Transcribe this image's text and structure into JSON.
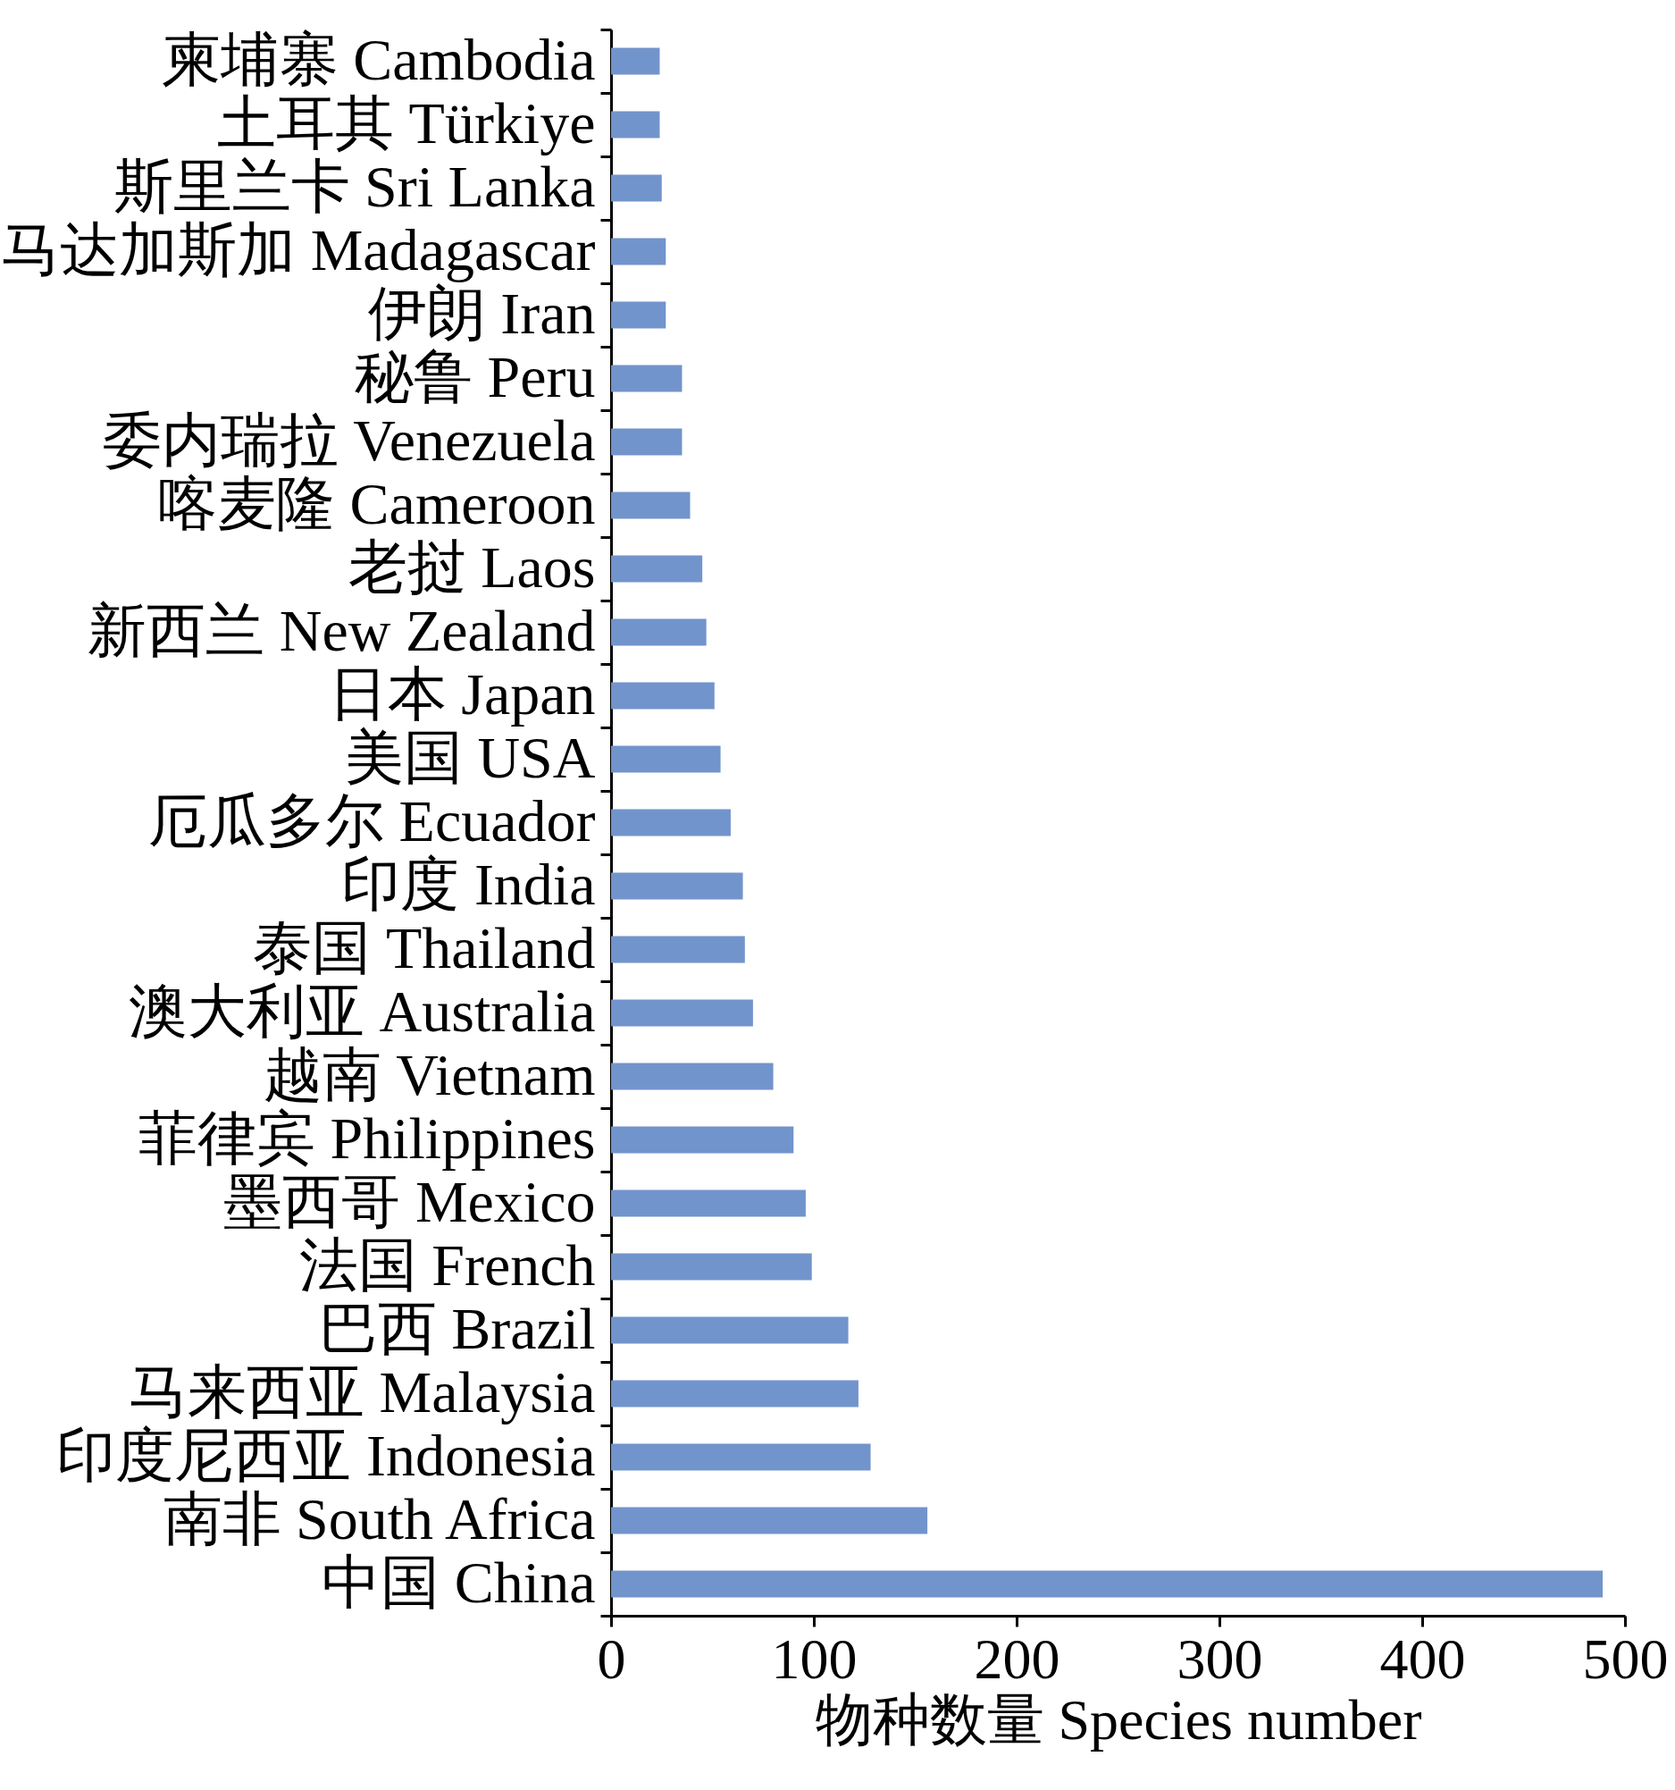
{
  "chart_data": {
    "type": "bar",
    "orientation": "horizontal",
    "xlabel": "物种数量 Species number",
    "categories": [
      "柬埔寨 Cambodia",
      "土耳其 Türkiye",
      "斯里兰卡 Sri Lanka",
      "马达加斯加 Madagascar",
      "伊朗 Iran",
      "秘鲁 Peru",
      "委内瑞拉 Venezuela",
      "喀麦隆 Cameroon",
      "老挝 Laos",
      "新西兰 New Zealand",
      "日本 Japan",
      "美国 USA",
      "厄瓜多尔 Ecuador",
      "印度 India",
      "泰国 Thailand",
      "澳大利亚 Australia",
      "越南 Vietnam",
      "菲律宾 Philippines",
      "墨西哥 Mexico",
      "法国 French",
      "巴西 Brazil",
      "马来西亚 Malaysia",
      "印度尼西亚 Indonesia",
      "南非 South Africa",
      "中国 China"
    ],
    "values": [
      24,
      24,
      25,
      27,
      27,
      35,
      35,
      39,
      45,
      47,
      51,
      54,
      59,
      65,
      66,
      70,
      80,
      90,
      96,
      99,
      117,
      122,
      128,
      156,
      489
    ],
    "color": "#7294cc",
    "xlim": [
      0,
      500
    ],
    "xticks": [
      0,
      100,
      200,
      300,
      400,
      500
    ],
    "grid": false
  }
}
